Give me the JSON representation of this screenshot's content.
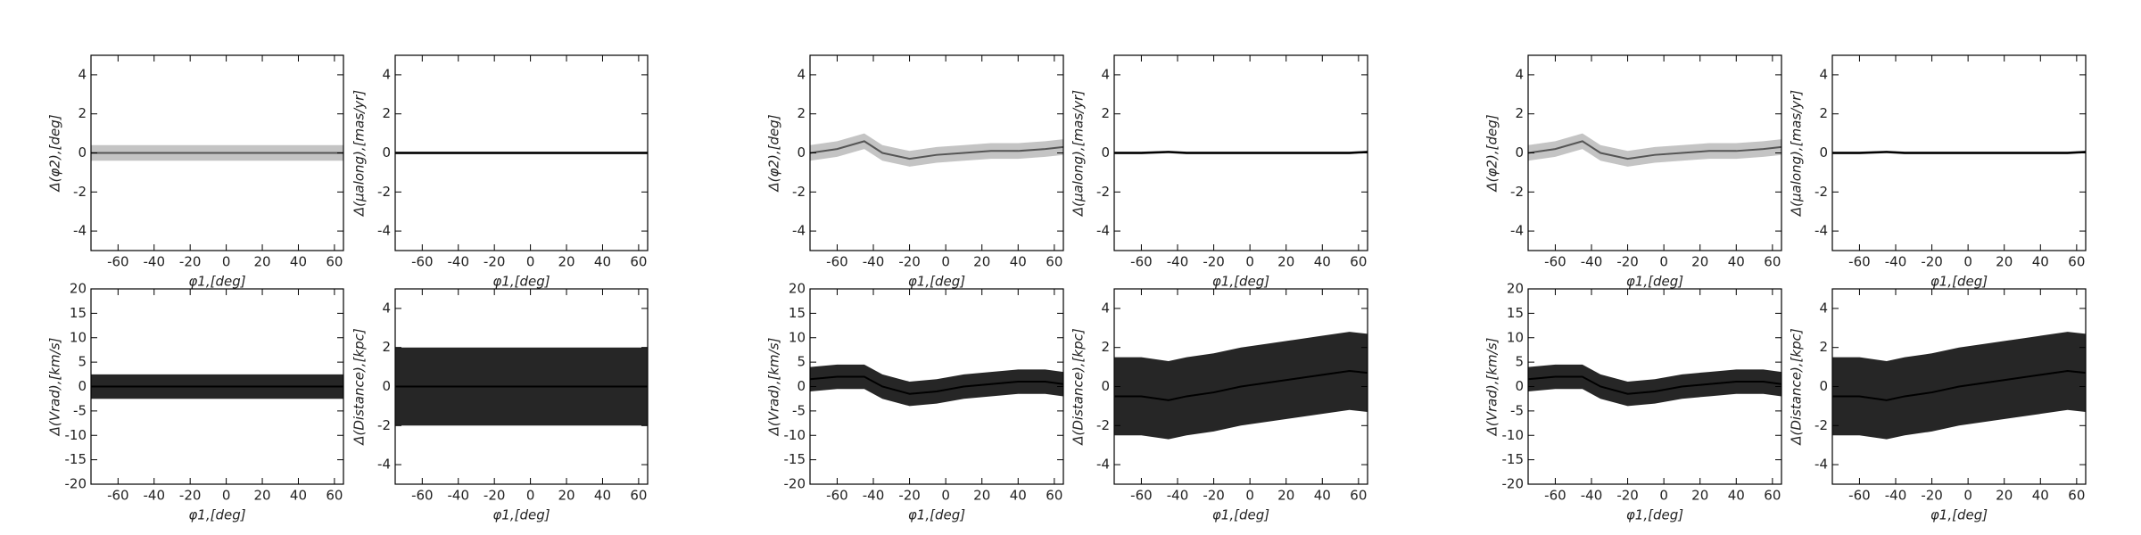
{
  "chart_data": [
    {
      "type": "band",
      "xlabel": "φ1,[deg]",
      "ylabel": "Δ(φ2),[deg]",
      "xlim": [
        -75,
        65
      ],
      "ylim": [
        -5,
        5
      ],
      "xticks": [
        -60,
        -40,
        -20,
        0,
        20,
        40,
        60
      ],
      "yticks": [
        -4,
        -2,
        0,
        2,
        4
      ],
      "color": "#555555",
      "x": [
        -75,
        -60,
        -45,
        -35,
        -20,
        -5,
        10,
        25,
        40,
        55,
        65
      ],
      "center": [
        0,
        0,
        0,
        0,
        0,
        0,
        0,
        0,
        0,
        0,
        0
      ],
      "spread": [
        0.4,
        0.4,
        0.4,
        0.4,
        0.4,
        0.4,
        0.4,
        0.4,
        0.4,
        0.4,
        0.4
      ]
    },
    {
      "type": "band",
      "xlabel": "φ1,[deg]",
      "ylabel": "Δ(μalong),[mas/yr]",
      "xlim": [
        -75,
        65
      ],
      "ylim": [
        -5,
        5
      ],
      "xticks": [
        -60,
        -40,
        -20,
        0,
        20,
        40,
        60
      ],
      "yticks": [
        -4,
        -2,
        0,
        2,
        4
      ],
      "color": "#000000",
      "x": [
        -75,
        -60,
        -45,
        -35,
        -20,
        -5,
        10,
        25,
        40,
        55,
        65
      ],
      "center": [
        0,
        0,
        0,
        0,
        0,
        0,
        0,
        0,
        0,
        0,
        0
      ],
      "spread": [
        0.06,
        0.06,
        0.06,
        0.06,
        0.06,
        0.06,
        0.06,
        0.06,
        0.06,
        0.06,
        0.06
      ]
    },
    {
      "type": "band",
      "xlabel": "φ1,[deg]",
      "ylabel": "Δ(Vrad),[km/s]",
      "xlim": [
        -75,
        65
      ],
      "ylim": [
        -20,
        20
      ],
      "xticks": [
        -60,
        -40,
        -20,
        0,
        20,
        40,
        60
      ],
      "yticks": [
        -20,
        -15,
        -10,
        -5,
        0,
        5,
        10,
        15,
        20
      ],
      "color": "#000000",
      "x": [
        -75,
        -60,
        -45,
        -35,
        -20,
        -5,
        10,
        25,
        40,
        55,
        65
      ],
      "center": [
        0,
        0,
        0,
        0,
        0,
        0,
        0,
        0,
        0,
        0,
        0
      ],
      "spread": [
        2.5,
        2.5,
        2.5,
        2.5,
        2.5,
        2.5,
        2.5,
        2.5,
        2.5,
        2.5,
        2.5
      ]
    },
    {
      "type": "band",
      "xlabel": "φ1,[deg]",
      "ylabel": "Δ(Distance),[kpc]",
      "xlim": [
        -75,
        65
      ],
      "ylim": [
        -5,
        5
      ],
      "xticks": [
        -60,
        -40,
        -20,
        0,
        20,
        40,
        60
      ],
      "yticks": [
        -4,
        -2,
        0,
        2,
        4
      ],
      "color": "#000000",
      "x": [
        -75,
        -60,
        -45,
        -35,
        -20,
        -5,
        10,
        25,
        40,
        55,
        65
      ],
      "center": [
        0,
        0,
        0,
        0,
        0,
        0,
        0,
        0,
        0,
        0,
        0
      ],
      "spread": [
        2,
        2,
        2,
        2,
        2,
        2,
        2,
        2,
        2,
        2,
        2
      ]
    },
    {
      "type": "band",
      "xlabel": "φ1,[deg]",
      "ylabel": "Δ(φ2),[deg]",
      "xlim": [
        -75,
        65
      ],
      "ylim": [
        -5,
        5
      ],
      "xticks": [
        -60,
        -40,
        -20,
        0,
        20,
        40,
        60
      ],
      "yticks": [
        -4,
        -2,
        0,
        2,
        4
      ],
      "color": "#555555",
      "x": [
        -75,
        -60,
        -45,
        -35,
        -20,
        -5,
        10,
        25,
        40,
        55,
        65
      ],
      "center": [
        0,
        0.2,
        0.6,
        0,
        -0.3,
        -0.1,
        0,
        0.1,
        0.1,
        0.2,
        0.3
      ],
      "spread": [
        0.4,
        0.4,
        0.4,
        0.4,
        0.4,
        0.4,
        0.4,
        0.4,
        0.4,
        0.4,
        0.4
      ]
    },
    {
      "type": "band",
      "xlabel": "φ1,[deg]",
      "ylabel": "Δ(μalong),[mas/yr]",
      "xlim": [
        -75,
        65
      ],
      "ylim": [
        -5,
        5
      ],
      "xticks": [
        -60,
        -40,
        -20,
        0,
        20,
        40,
        60
      ],
      "yticks": [
        -4,
        -2,
        0,
        2,
        4
      ],
      "color": "#000000",
      "x": [
        -75,
        -60,
        -45,
        -35,
        -20,
        -5,
        10,
        25,
        40,
        55,
        65
      ],
      "center": [
        0,
        0,
        0.05,
        0,
        0,
        0,
        0,
        0,
        0,
        0,
        0.05
      ],
      "spread": [
        0.06,
        0.06,
        0.06,
        0.06,
        0.06,
        0.06,
        0.06,
        0.06,
        0.06,
        0.06,
        0.06
      ]
    },
    {
      "type": "band",
      "xlabel": "φ1,[deg]",
      "ylabel": "Δ(Vrad),[km/s]",
      "xlim": [
        -75,
        65
      ],
      "ylim": [
        -20,
        20
      ],
      "xticks": [
        -60,
        -40,
        -20,
        0,
        20,
        40,
        60
      ],
      "yticks": [
        -20,
        -15,
        -10,
        -5,
        0,
        5,
        10,
        15,
        20
      ],
      "color": "#000000",
      "x": [
        -75,
        -60,
        -45,
        -35,
        -20,
        -5,
        10,
        25,
        40,
        55,
        65
      ],
      "center": [
        1.5,
        2,
        2,
        0,
        -1.5,
        -1,
        0,
        0.5,
        1,
        1,
        0.5
      ],
      "spread": [
        2.5,
        2.5,
        2.5,
        2.5,
        2.5,
        2.5,
        2.5,
        2.5,
        2.5,
        2.5,
        2.5
      ]
    },
    {
      "type": "band",
      "xlabel": "φ1,[deg]",
      "ylabel": "Δ(Distance),[kpc]",
      "xlim": [
        -75,
        65
      ],
      "ylim": [
        -5,
        5
      ],
      "xticks": [
        -60,
        -40,
        -20,
        0,
        20,
        40,
        60
      ],
      "yticks": [
        -4,
        -2,
        0,
        2,
        4
      ],
      "color": "#000000",
      "x": [
        -75,
        -60,
        -45,
        -35,
        -20,
        -5,
        10,
        25,
        40,
        55,
        65
      ],
      "center": [
        -0.5,
        -0.5,
        -0.7,
        -0.5,
        -0.3,
        0,
        0.2,
        0.4,
        0.6,
        0.8,
        0.7
      ],
      "spread": [
        2,
        2,
        2,
        2,
        2,
        2,
        2,
        2,
        2,
        2,
        2
      ]
    },
    {
      "type": "band",
      "xlabel": "φ1,[deg]",
      "ylabel": "Δ(φ2),[deg]",
      "xlim": [
        -75,
        65
      ],
      "ylim": [
        -5,
        5
      ],
      "xticks": [
        -60,
        -40,
        -20,
        0,
        20,
        40,
        60
      ],
      "yticks": [
        -4,
        -2,
        0,
        2,
        4
      ],
      "color": "#555555",
      "x": [
        -75,
        -60,
        -45,
        -35,
        -20,
        -5,
        10,
        25,
        40,
        55,
        65
      ],
      "center": [
        0,
        0.2,
        0.6,
        0,
        -0.3,
        -0.1,
        0,
        0.1,
        0.1,
        0.2,
        0.3
      ],
      "spread": [
        0.4,
        0.4,
        0.4,
        0.4,
        0.4,
        0.4,
        0.4,
        0.4,
        0.4,
        0.4,
        0.4
      ]
    },
    {
      "type": "band",
      "xlabel": "φ1,[deg]",
      "ylabel": "Δ(μalong),[mas/yr]",
      "xlim": [
        -75,
        65
      ],
      "ylim": [
        -5,
        5
      ],
      "xticks": [
        -60,
        -40,
        -20,
        0,
        20,
        40,
        60
      ],
      "yticks": [
        -4,
        -2,
        0,
        2,
        4
      ],
      "color": "#000000",
      "x": [
        -75,
        -60,
        -45,
        -35,
        -20,
        -5,
        10,
        25,
        40,
        55,
        65
      ],
      "center": [
        0,
        0,
        0.05,
        0,
        0,
        0,
        0,
        0,
        0,
        0,
        0.05
      ],
      "spread": [
        0.06,
        0.06,
        0.06,
        0.06,
        0.06,
        0.06,
        0.06,
        0.06,
        0.06,
        0.06,
        0.06
      ]
    },
    {
      "type": "band",
      "xlabel": "φ1,[deg]",
      "ylabel": "Δ(Vrad),[km/s]",
      "xlim": [
        -75,
        65
      ],
      "ylim": [
        -20,
        20
      ],
      "xticks": [
        -60,
        -40,
        -20,
        0,
        20,
        40,
        60
      ],
      "yticks": [
        -20,
        -15,
        -10,
        -5,
        0,
        5,
        10,
        15,
        20
      ],
      "color": "#000000",
      "x": [
        -75,
        -60,
        -45,
        -35,
        -20,
        -5,
        10,
        25,
        40,
        55,
        65
      ],
      "center": [
        1.5,
        2,
        2,
        0,
        -1.5,
        -1,
        0,
        0.5,
        1,
        1,
        0.5
      ],
      "spread": [
        2.5,
        2.5,
        2.5,
        2.5,
        2.5,
        2.5,
        2.5,
        2.5,
        2.5,
        2.5,
        2.5
      ]
    },
    {
      "type": "band",
      "xlabel": "φ1,[deg]",
      "ylabel": "Δ(Distance),[kpc]",
      "xlim": [
        -75,
        65
      ],
      "ylim": [
        -5,
        5
      ],
      "xticks": [
        -60,
        -40,
        -20,
        0,
        20,
        40,
        60
      ],
      "yticks": [
        -4,
        -2,
        0,
        2,
        4
      ],
      "color": "#000000",
      "x": [
        -75,
        -60,
        -45,
        -35,
        -20,
        -5,
        10,
        25,
        40,
        55,
        65
      ],
      "center": [
        -0.5,
        -0.5,
        -0.7,
        -0.5,
        -0.3,
        0,
        0.2,
        0.4,
        0.6,
        0.8,
        0.7
      ],
      "spread": [
        2,
        2,
        2,
        2,
        2,
        2,
        2,
        2,
        2,
        2,
        2
      ]
    }
  ]
}
